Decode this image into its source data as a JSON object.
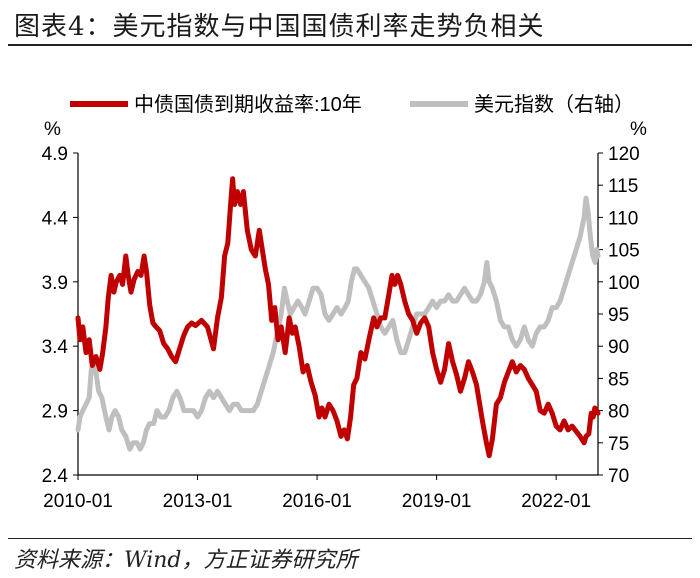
{
  "title": "图表4：美元指数与中国国债利率走势负相关",
  "source": "资料来源：Wind，方正证券研究所",
  "chart_data": {
    "type": "line",
    "left_axis": {
      "unit": "%",
      "min": 2.4,
      "max": 4.9,
      "ticks": [
        "4.9",
        "4.4",
        "3.9",
        "3.4",
        "2.9",
        "2.4"
      ],
      "tick_values": [
        4.9,
        4.4,
        3.9,
        3.4,
        2.9,
        2.4
      ]
    },
    "right_axis": {
      "unit": "%",
      "min": 70,
      "max": 120,
      "ticks": [
        "120",
        "115",
        "110",
        "105",
        "100",
        "95",
        "90",
        "85",
        "80",
        "75",
        "70"
      ],
      "tick_values": [
        120,
        115,
        110,
        105,
        100,
        95,
        90,
        85,
        80,
        75,
        70
      ]
    },
    "x_axis": {
      "start": 2010.0,
      "end": 2023.05,
      "ticks": [
        "2010-01",
        "2013-01",
        "2016-01",
        "2019-01",
        "2022-01"
      ],
      "tick_values": [
        2010,
        2013,
        2016,
        2019,
        2022
      ]
    },
    "series": [
      {
        "name": "中债国债到期收益率:10年",
        "axis": "left",
        "color": "#c00000",
        "points": [
          [
            2010.0,
            3.62
          ],
          [
            2010.05,
            3.45
          ],
          [
            2010.12,
            3.55
          ],
          [
            2010.2,
            3.35
          ],
          [
            2010.28,
            3.45
          ],
          [
            2010.36,
            3.25
          ],
          [
            2010.45,
            3.32
          ],
          [
            2010.55,
            3.22
          ],
          [
            2010.62,
            3.35
          ],
          [
            2010.7,
            3.55
          ],
          [
            2010.76,
            3.78
          ],
          [
            2010.83,
            3.95
          ],
          [
            2010.9,
            3.82
          ],
          [
            2010.96,
            3.9
          ],
          [
            2011.05,
            3.95
          ],
          [
            2011.12,
            3.88
          ],
          [
            2011.2,
            4.1
          ],
          [
            2011.26,
            3.95
          ],
          [
            2011.33,
            3.82
          ],
          [
            2011.41,
            3.92
          ],
          [
            2011.5,
            3.98
          ],
          [
            2011.58,
            3.95
          ],
          [
            2011.66,
            4.1
          ],
          [
            2011.72,
            3.98
          ],
          [
            2011.8,
            3.72
          ],
          [
            2011.88,
            3.58
          ],
          [
            2011.96,
            3.55
          ],
          [
            2012.05,
            3.52
          ],
          [
            2012.15,
            3.42
          ],
          [
            2012.25,
            3.38
          ],
          [
            2012.35,
            3.32
          ],
          [
            2012.45,
            3.28
          ],
          [
            2012.55,
            3.38
          ],
          [
            2012.65,
            3.48
          ],
          [
            2012.75,
            3.55
          ],
          [
            2012.85,
            3.58
          ],
          [
            2012.95,
            3.56
          ],
          [
            2013.1,
            3.6
          ],
          [
            2013.25,
            3.55
          ],
          [
            2013.4,
            3.38
          ],
          [
            2013.5,
            3.62
          ],
          [
            2013.6,
            3.78
          ],
          [
            2013.68,
            4.1
          ],
          [
            2013.76,
            4.2
          ],
          [
            2013.83,
            4.5
          ],
          [
            2013.88,
            4.7
          ],
          [
            2013.93,
            4.5
          ],
          [
            2014.0,
            4.6
          ],
          [
            2014.08,
            4.5
          ],
          [
            2014.15,
            4.6
          ],
          [
            2014.25,
            4.3
          ],
          [
            2014.35,
            4.15
          ],
          [
            2014.45,
            4.1
          ],
          [
            2014.55,
            4.3
          ],
          [
            2014.6,
            4.2
          ],
          [
            2014.7,
            4.0
          ],
          [
            2014.78,
            3.88
          ],
          [
            2014.86,
            3.6
          ],
          [
            2014.94,
            3.7
          ],
          [
            2015.02,
            3.45
          ],
          [
            2015.1,
            3.55
          ],
          [
            2015.2,
            3.35
          ],
          [
            2015.3,
            3.62
          ],
          [
            2015.38,
            3.5
          ],
          [
            2015.45,
            3.55
          ],
          [
            2015.55,
            3.4
          ],
          [
            2015.65,
            3.2
          ],
          [
            2015.75,
            3.25
          ],
          [
            2015.85,
            3.12
          ],
          [
            2015.95,
            3.02
          ],
          [
            2016.05,
            2.85
          ],
          [
            2016.12,
            2.92
          ],
          [
            2016.2,
            2.85
          ],
          [
            2016.3,
            2.95
          ],
          [
            2016.4,
            2.9
          ],
          [
            2016.5,
            2.82
          ],
          [
            2016.6,
            2.7
          ],
          [
            2016.68,
            2.75
          ],
          [
            2016.76,
            2.68
          ],
          [
            2016.84,
            2.85
          ],
          [
            2016.92,
            3.1
          ],
          [
            2017.0,
            3.15
          ],
          [
            2017.1,
            3.35
          ],
          [
            2017.2,
            3.3
          ],
          [
            2017.32,
            3.48
          ],
          [
            2017.42,
            3.62
          ],
          [
            2017.5,
            3.55
          ],
          [
            2017.6,
            3.62
          ],
          [
            2017.7,
            3.62
          ],
          [
            2017.8,
            3.8
          ],
          [
            2017.88,
            3.95
          ],
          [
            2017.95,
            3.88
          ],
          [
            2018.02,
            3.95
          ],
          [
            2018.1,
            3.88
          ],
          [
            2018.2,
            3.75
          ],
          [
            2018.3,
            3.65
          ],
          [
            2018.4,
            3.6
          ],
          [
            2018.5,
            3.5
          ],
          [
            2018.6,
            3.58
          ],
          [
            2018.7,
            3.62
          ],
          [
            2018.8,
            3.55
          ],
          [
            2018.9,
            3.35
          ],
          [
            2019.0,
            3.22
          ],
          [
            2019.1,
            3.12
          ],
          [
            2019.2,
            3.22
          ],
          [
            2019.3,
            3.42
          ],
          [
            2019.4,
            3.28
          ],
          [
            2019.5,
            3.18
          ],
          [
            2019.6,
            3.05
          ],
          [
            2019.7,
            3.15
          ],
          [
            2019.8,
            3.28
          ],
          [
            2019.9,
            3.2
          ],
          [
            2020.0,
            3.1
          ],
          [
            2020.08,
            2.95
          ],
          [
            2020.15,
            2.82
          ],
          [
            2020.25,
            2.65
          ],
          [
            2020.32,
            2.55
          ],
          [
            2020.4,
            2.68
          ],
          [
            2020.5,
            2.95
          ],
          [
            2020.6,
            3.0
          ],
          [
            2020.7,
            3.12
          ],
          [
            2020.8,
            3.2
          ],
          [
            2020.9,
            3.28
          ],
          [
            2021.0,
            3.2
          ],
          [
            2021.1,
            3.25
          ],
          [
            2021.2,
            3.22
          ],
          [
            2021.3,
            3.15
          ],
          [
            2021.4,
            3.1
          ],
          [
            2021.5,
            3.05
          ],
          [
            2021.6,
            2.9
          ],
          [
            2021.7,
            2.88
          ],
          [
            2021.8,
            2.95
          ],
          [
            2021.9,
            2.88
          ],
          [
            2022.0,
            2.78
          ],
          [
            2022.1,
            2.75
          ],
          [
            2022.2,
            2.82
          ],
          [
            2022.3,
            2.75
          ],
          [
            2022.4,
            2.78
          ],
          [
            2022.5,
            2.74
          ],
          [
            2022.6,
            2.7
          ],
          [
            2022.7,
            2.65
          ],
          [
            2022.75,
            2.7
          ],
          [
            2022.82,
            2.72
          ],
          [
            2022.88,
            2.88
          ],
          [
            2022.93,
            2.85
          ],
          [
            2022.97,
            2.92
          ],
          [
            2023.02,
            2.9
          ],
          [
            2023.05,
            2.88
          ]
        ]
      },
      {
        "name": "美元指数（右轴）",
        "axis": "right",
        "color": "#bfbfbf",
        "points": [
          [
            2010.0,
            77
          ],
          [
            2010.05,
            79
          ],
          [
            2010.12,
            80
          ],
          [
            2010.2,
            81
          ],
          [
            2010.28,
            82
          ],
          [
            2010.33,
            86
          ],
          [
            2010.38,
            88
          ],
          [
            2010.45,
            86
          ],
          [
            2010.52,
            83
          ],
          [
            2010.6,
            82
          ],
          [
            2010.7,
            79
          ],
          [
            2010.78,
            77
          ],
          [
            2010.85,
            79
          ],
          [
            2010.93,
            80
          ],
          [
            2011.02,
            79
          ],
          [
            2011.1,
            77
          ],
          [
            2011.2,
            76
          ],
          [
            2011.3,
            74
          ],
          [
            2011.38,
            75
          ],
          [
            2011.48,
            75
          ],
          [
            2011.56,
            74
          ],
          [
            2011.64,
            75
          ],
          [
            2011.72,
            77
          ],
          [
            2011.8,
            78
          ],
          [
            2011.9,
            78
          ],
          [
            2011.98,
            80
          ],
          [
            2012.08,
            79
          ],
          [
            2012.18,
            79
          ],
          [
            2012.28,
            80
          ],
          [
            2012.38,
            82
          ],
          [
            2012.48,
            83
          ],
          [
            2012.56,
            82
          ],
          [
            2012.66,
            80
          ],
          [
            2012.78,
            80
          ],
          [
            2012.9,
            80
          ],
          [
            2013.0,
            79
          ],
          [
            2013.1,
            80
          ],
          [
            2013.2,
            82
          ],
          [
            2013.3,
            83
          ],
          [
            2013.4,
            82
          ],
          [
            2013.5,
            83
          ],
          [
            2013.6,
            82
          ],
          [
            2013.7,
            81
          ],
          [
            2013.8,
            80
          ],
          [
            2013.9,
            81
          ],
          [
            2014.0,
            81
          ],
          [
            2014.1,
            80
          ],
          [
            2014.2,
            80
          ],
          [
            2014.3,
            80
          ],
          [
            2014.4,
            80
          ],
          [
            2014.5,
            81
          ],
          [
            2014.6,
            83
          ],
          [
            2014.7,
            85
          ],
          [
            2014.8,
            87
          ],
          [
            2014.9,
            89
          ],
          [
            2015.0,
            92
          ],
          [
            2015.1,
            95
          ],
          [
            2015.18,
            99
          ],
          [
            2015.25,
            97
          ],
          [
            2015.33,
            95
          ],
          [
            2015.42,
            96
          ],
          [
            2015.52,
            97
          ],
          [
            2015.62,
            96
          ],
          [
            2015.7,
            95
          ],
          [
            2015.8,
            97
          ],
          [
            2015.9,
            99
          ],
          [
            2016.0,
            99
          ],
          [
            2016.1,
            98
          ],
          [
            2016.2,
            95
          ],
          [
            2016.3,
            94
          ],
          [
            2016.4,
            95
          ],
          [
            2016.5,
            96
          ],
          [
            2016.6,
            95
          ],
          [
            2016.7,
            96
          ],
          [
            2016.78,
            97
          ],
          [
            2016.86,
            100
          ],
          [
            2016.94,
            102
          ],
          [
            2017.0,
            102
          ],
          [
            2017.1,
            101
          ],
          [
            2017.2,
            100
          ],
          [
            2017.3,
            99
          ],
          [
            2017.4,
            97
          ],
          [
            2017.5,
            95
          ],
          [
            2017.6,
            93
          ],
          [
            2017.7,
            92
          ],
          [
            2017.8,
            93
          ],
          [
            2017.9,
            94
          ],
          [
            2018.0,
            91
          ],
          [
            2018.1,
            89
          ],
          [
            2018.2,
            89
          ],
          [
            2018.3,
            91
          ],
          [
            2018.4,
            93
          ],
          [
            2018.5,
            95
          ],
          [
            2018.6,
            95
          ],
          [
            2018.7,
            95
          ],
          [
            2018.8,
            96
          ],
          [
            2018.9,
            97
          ],
          [
            2019.0,
            96
          ],
          [
            2019.1,
            97
          ],
          [
            2019.2,
            97
          ],
          [
            2019.3,
            98
          ],
          [
            2019.4,
            97
          ],
          [
            2019.5,
            97
          ],
          [
            2019.6,
            98
          ],
          [
            2019.7,
            99
          ],
          [
            2019.8,
            98
          ],
          [
            2019.9,
            97
          ],
          [
            2020.0,
            97
          ],
          [
            2020.1,
            98
          ],
          [
            2020.2,
            100
          ],
          [
            2020.26,
            103
          ],
          [
            2020.32,
            100
          ],
          [
            2020.4,
            99
          ],
          [
            2020.5,
            97
          ],
          [
            2020.6,
            94
          ],
          [
            2020.7,
            93
          ],
          [
            2020.8,
            93
          ],
          [
            2020.9,
            91
          ],
          [
            2021.0,
            90
          ],
          [
            2021.1,
            91
          ],
          [
            2021.2,
            93
          ],
          [
            2021.3,
            91
          ],
          [
            2021.4,
            90
          ],
          [
            2021.5,
            92
          ],
          [
            2021.6,
            93
          ],
          [
            2021.7,
            93
          ],
          [
            2021.8,
            94
          ],
          [
            2021.9,
            96
          ],
          [
            2022.0,
            96
          ],
          [
            2022.1,
            97
          ],
          [
            2022.2,
            99
          ],
          [
            2022.3,
            101
          ],
          [
            2022.4,
            103
          ],
          [
            2022.5,
            105
          ],
          [
            2022.6,
            107
          ],
          [
            2022.7,
            110
          ],
          [
            2022.75,
            113
          ],
          [
            2022.8,
            111
          ],
          [
            2022.86,
            107
          ],
          [
            2022.92,
            104
          ],
          [
            2022.98,
            103
          ],
          [
            2023.02,
            105
          ],
          [
            2023.05,
            104
          ]
        ]
      }
    ],
    "legend": {
      "placement": "top"
    }
  }
}
